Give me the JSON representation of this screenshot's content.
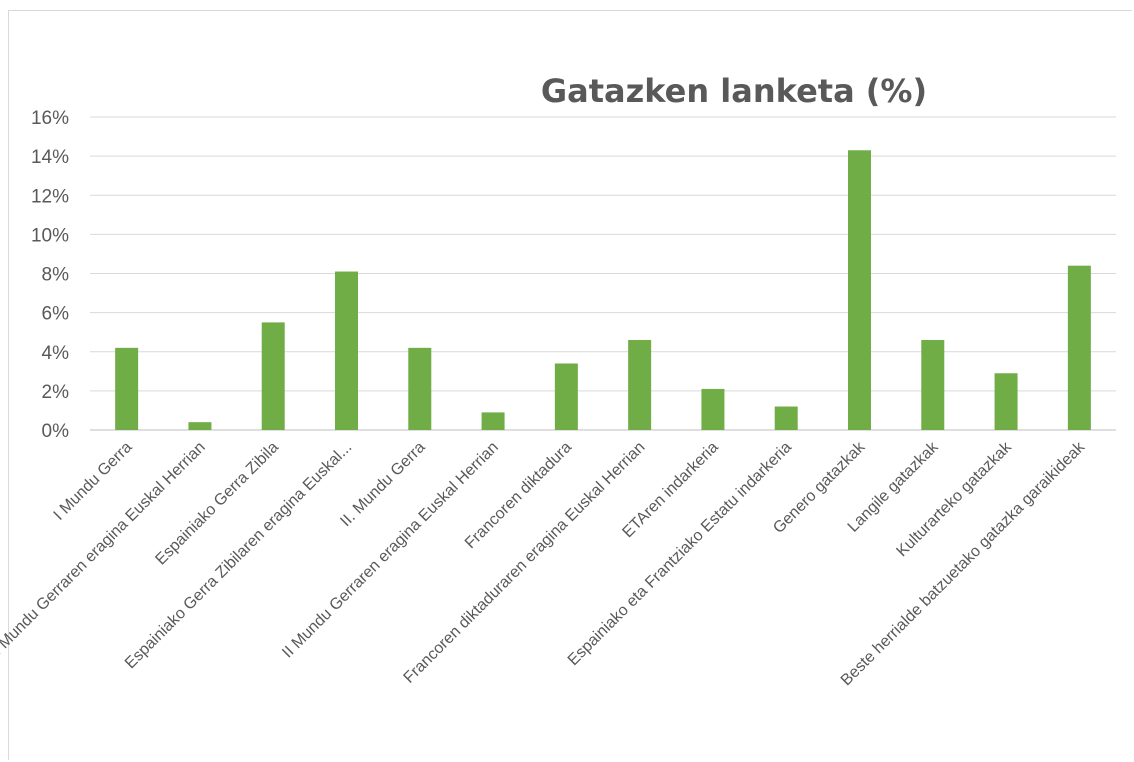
{
  "chart_data": {
    "type": "bar",
    "title": "Gatazken lanketa (%)",
    "xlabel": "",
    "ylabel": "",
    "ylim": [
      0,
      16
    ],
    "y_ticks": [
      "0%",
      "2%",
      "4%",
      "6%",
      "8%",
      "10%",
      "12%",
      "14%",
      "16%"
    ],
    "y_tick_values": [
      0,
      2,
      4,
      6,
      8,
      10,
      12,
      14,
      16
    ],
    "grid": true,
    "legend": "none",
    "bar_color": "#70ad47",
    "categories": [
      "I Mundu Gerra",
      "I Mundu Gerraren eragina Euskal Herrian",
      "Espainiako Gerra Zibila",
      "Espainiako Gerra Zibilaren eragina Euskal...",
      "II. Mundu Gerra",
      "II Mundu Gerraren eragina Euskal Herrian",
      "Francoren diktadura",
      "Francoren diktaduraren eragina Euskal Herrian",
      "ETAren indarkeria",
      "Espainiako eta Frantziako Estatu indarkeria",
      "Genero gatazkak",
      "Langile gatazkak",
      "Kulturarteko gatazkak",
      "Beste herrialde batzuetako gatazka garaikideak"
    ],
    "values": [
      4.2,
      0.4,
      5.5,
      8.1,
      4.2,
      0.9,
      3.4,
      4.6,
      2.1,
      1.2,
      14.3,
      4.6,
      2.9,
      8.4
    ]
  }
}
